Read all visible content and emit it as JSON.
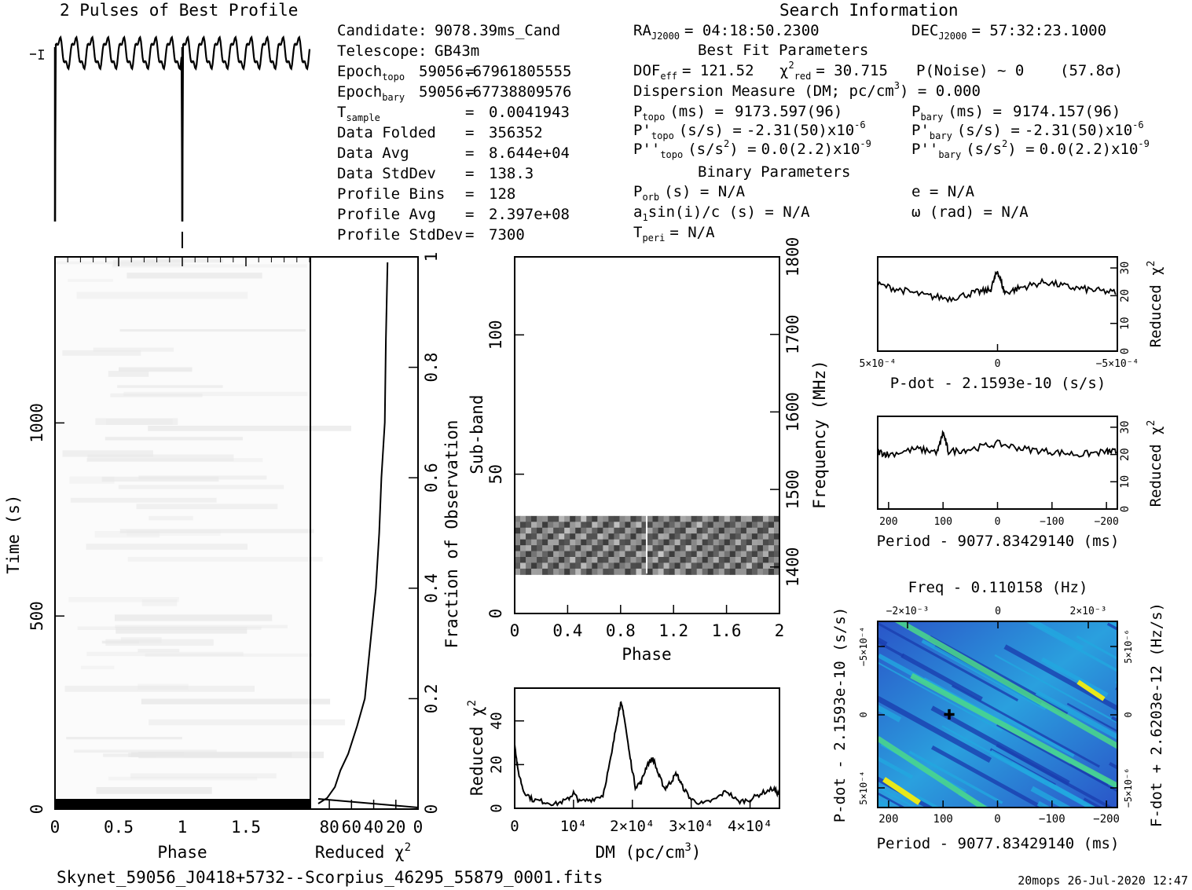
{
  "title": "2 Pulses of Best Profile",
  "search_title": "Search Information",
  "best_fit_title": "Best Fit Parameters",
  "binary_title": "Binary Parameters",
  "footer_left": "Skynet_59056_J0418+5732--Scorpius_46295_55879_0001.fits",
  "footer_right": "20mops 26-Jul-2020 12:47",
  "info_left": [
    {
      "k": "Candidate:",
      "sub": "",
      "eq": "",
      "v": "9078.39ms_Cand"
    },
    {
      "k": "Telescope:",
      "sub": "",
      "eq": "",
      "v": "GB43m"
    },
    {
      "k": "Epoch",
      "sub": "topo",
      "eq": "=",
      "v": "59056.67961805555"
    },
    {
      "k": "Epoch",
      "sub": "bary",
      "eq": "=",
      "v": "59056.67738809576"
    },
    {
      "k": "T",
      "sub": "sample",
      "eq": "=",
      "v": "0.0041943"
    },
    {
      "k": "Data Folded",
      "sub": "",
      "eq": "=",
      "v": "356352"
    },
    {
      "k": "Data Avg",
      "sub": "",
      "eq": "=",
      "v": "8.644e+04"
    },
    {
      "k": "Data StdDev",
      "sub": "",
      "eq": "=",
      "v": "138.3"
    },
    {
      "k": "Profile Bins",
      "sub": "",
      "eq": "=",
      "v": "128"
    },
    {
      "k": "Profile Avg",
      "sub": "",
      "eq": "=",
      "v": "2.397e+08"
    },
    {
      "k": "Profile StdDev",
      "sub": "",
      "eq": "=",
      "v": "7300"
    }
  ],
  "ra": {
    "k": "RA",
    "sub": "J2000",
    "v": "= 04:18:50.2300"
  },
  "dec": {
    "k": "DEC",
    "sub": "J2000",
    "v": "= 57:32:23.1000"
  },
  "dof": {
    "k": "DOF",
    "sub": "eff",
    "v": "= 121.52"
  },
  "chi2red": {
    "k": "χ",
    "sup": "2",
    "sub": "red",
    "v": "= 30.715"
  },
  "pnoise": "P(Noise) ~ 0    (57.8σ)",
  "dm": {
    "text": "Dispersion Measure (DM; pc/cm",
    "sup": "3",
    "tail": ") = 0.000"
  },
  "ptopo": {
    "k": "P",
    "sub": "topo",
    "unit": "(ms) =",
    "v": "9173.597(96)"
  },
  "pbary": {
    "k": "P",
    "sub": "bary",
    "unit": "(ms) =",
    "v": "9174.157(96)"
  },
  "pdtopo": {
    "k": "P'",
    "sub": "topo",
    "unit": "(s/s) =",
    "v": "-2.31(50)x10",
    "exp": "-6"
  },
  "pdbary": {
    "k": "P'",
    "sub": "bary",
    "unit": "(s/s) =",
    "v": "-2.31(50)x10",
    "exp": "-6"
  },
  "pddtopo": {
    "k": "P''",
    "sub": "topo",
    "unit": "(s/s",
    "unit_sup": "2",
    "unit_tail": ") =",
    "v": "0.0(2.2)x10",
    "exp": "-9"
  },
  "pddbary": {
    "k": "P''",
    "sub": "bary",
    "unit": "(s/s",
    "unit_sup": "2",
    "unit_tail": ") =",
    "v": "0.0(2.2)x10",
    "exp": "-9"
  },
  "porb": {
    "k": "P",
    "sub": "orb",
    "v": "(s) = N/A"
  },
  "a1sini": {
    "k": "a",
    "sub": "1",
    "v": "sin(i)/c (s) = N/A"
  },
  "tperi": {
    "k": "T",
    "sub": "peri",
    "v": "= N/A"
  },
  "ecc": "e = N/A",
  "omega": "ω (rad) = N/A",
  "chart_data": [
    {
      "type": "line",
      "name": "profile",
      "xlabel": "",
      "ylabel": "",
      "x": [
        0,
        0.0625,
        0.125,
        0.1875,
        0.25,
        0.3125,
        0.375,
        0.4375,
        0.5,
        0.5625,
        0.625,
        0.6875,
        0.75,
        0.8125,
        0.875,
        0.9375,
        1.0,
        1.0625,
        1.125,
        1.1875,
        1.25,
        1.3125,
        1.375,
        1.4375,
        1.5,
        1.5625,
        1.625,
        1.6875,
        1.75,
        1.8125,
        1.875,
        1.9375,
        2.0
      ],
      "values": [
        0.45,
        0.85,
        0.5,
        0.9,
        0.45,
        0.88,
        0.5,
        0.92,
        0.48,
        0.86,
        0.5,
        0.9,
        0.46,
        0.88,
        0.5,
        0.9,
        0.02,
        0.85,
        0.5,
        0.9,
        0.45,
        0.88,
        0.5,
        0.92,
        0.48,
        0.86,
        0.5,
        0.9,
        0.46,
        0.88,
        0.5,
        0.9,
        0.45
      ]
    },
    {
      "type": "heatmap",
      "name": "time-phase",
      "xlabel": "Phase",
      "ylabel": "Time (s)",
      "xlim": [
        0,
        2
      ],
      "ylim": [
        0,
        1430
      ],
      "xticks": [
        "0",
        "0.5",
        "1",
        "1.5"
      ],
      "yticks": [
        "0",
        "500",
        "1000"
      ]
    },
    {
      "type": "line",
      "name": "chi2-vs-time",
      "xlabel": "Reduced χ2",
      "ylabel": "Fraction of Observation",
      "xlim": [
        90,
        0
      ],
      "ylim": [
        0,
        1
      ],
      "xticks": [
        "80",
        "60",
        "40",
        "20",
        "0"
      ],
      "yticks": [
        "0",
        "0.2",
        "0.4",
        "0.6",
        "0.8",
        "1"
      ],
      "x": [
        90,
        82,
        75,
        70,
        63,
        55,
        48,
        43,
        38,
        35,
        33,
        30,
        29,
        27.5
      ],
      "y": [
        0.01,
        0.02,
        0.04,
        0.07,
        0.1,
        0.15,
        0.2,
        0.3,
        0.4,
        0.5,
        0.6,
        0.7,
        0.85,
        0.99
      ]
    },
    {
      "type": "heatmap",
      "name": "subband-phase",
      "xlabel": "Phase",
      "ylabel": "Sub-band",
      "y2label": "Frequency (MHz)",
      "xlim": [
        0,
        2
      ],
      "ylim": [
        0,
        128
      ],
      "xticks": [
        "0",
        "0.4",
        "0.8",
        "1.2",
        "1.6",
        "2"
      ],
      "yticks": [
        "0",
        "50",
        "100"
      ],
      "y2ticks": [
        "1400",
        "1500",
        "1600",
        "1700",
        "1800"
      ],
      "band": [
        14,
        35
      ]
    },
    {
      "type": "line",
      "name": "dm-curve",
      "xlabel": "DM (pc/cm3)",
      "ylabel": "Reduced χ2",
      "xlim": [
        0,
        45000
      ],
      "ylim": [
        0,
        55
      ],
      "xticks": [
        "0",
        "10⁴",
        "2×10⁴",
        "3×10⁴",
        "4×10⁴"
      ],
      "yticks": [
        "0",
        "20",
        "40"
      ],
      "x": [
        0,
        500,
        1500,
        3000,
        5000,
        7000,
        9000,
        10000,
        11000,
        13000,
        15000,
        16500,
        17500,
        18000,
        18500,
        19500,
        20500,
        21500,
        22500,
        23500,
        24500,
        25500,
        26500,
        27500,
        28500,
        30000,
        32000,
        34000,
        36000,
        38000,
        40000,
        42000,
        44000,
        45000
      ],
      "values": [
        30,
        18,
        8,
        4,
        3,
        2,
        4,
        7,
        3,
        4,
        6,
        25,
        42,
        48,
        44,
        25,
        10,
        12,
        20,
        23,
        15,
        9,
        12,
        16,
        10,
        4,
        2,
        4,
        8,
        3,
        4,
        7,
        9,
        6
      ]
    },
    {
      "type": "line",
      "name": "chi2-vs-pdot",
      "xlabel": "P-dot - 2.1593e-10 (s/s)",
      "ylabel": "Reduced χ2",
      "xlim": [
        0.0005,
        -0.0005
      ],
      "ylim": [
        0,
        34
      ],
      "xticks": [
        "5×10⁻⁴",
        "0",
        "−5×10⁻⁴"
      ],
      "yticks": [
        "0",
        "10",
        "20",
        "30"
      ],
      "x": [
        0.0005,
        0.0004,
        0.0003,
        0.0002,
        0.0001,
        3e-05,
        0,
        -3e-05,
        -0.0001,
        -0.0002,
        -0.0003,
        -0.0004,
        -0.0005
      ],
      "values": [
        24,
        22,
        20,
        19,
        21,
        22,
        29,
        21,
        23,
        25,
        23,
        22,
        21
      ]
    },
    {
      "type": "line",
      "name": "chi2-vs-period",
      "xlabel": "Period - 9077.83429140 (ms)",
      "ylabel": "Reduced χ2",
      "xlim": [
        220,
        -220
      ],
      "ylim": [
        0,
        34
      ],
      "xticks": [
        "200",
        "100",
        "0",
        "−100",
        "−200"
      ],
      "yticks": [
        "0",
        "10",
        "20",
        "30"
      ],
      "x": [
        220,
        200,
        150,
        110,
        100,
        90,
        50,
        0,
        -50,
        -100,
        -150,
        -200,
        -220
      ],
      "values": [
        21,
        20,
        22,
        21,
        28,
        21,
        22,
        24,
        22,
        21,
        20,
        21,
        21
      ]
    },
    {
      "type": "heatmap",
      "name": "p-pdot-plane",
      "title": "Freq - 0.110158 (Hz)",
      "xlabel": "Period - 9077.83429140 (ms)",
      "ylabel": "P-dot - 2.1593e-10 (s/s)",
      "y2label": "F-dot + 2.6203e-12 (Hz/s)",
      "xlim": [
        220,
        -220
      ],
      "xticks": [
        "200",
        "100",
        "0",
        "−100",
        "−200"
      ],
      "x2ticks": [
        "−2×10⁻³",
        "0",
        "2×10⁻³"
      ],
      "yticks": [
        "−5×10⁻⁴",
        "0",
        "5×10⁻⁴"
      ],
      "y2ticks": [
        "5×10⁻⁶",
        "0",
        "−5×10⁻⁶"
      ],
      "best": {
        "x": 96,
        "y": 0
      },
      "colors": {
        "low": "#1a3fb0",
        "mid": "#22a8e0",
        "high": "#4cd98a",
        "peak": "#e8e81a"
      }
    }
  ]
}
